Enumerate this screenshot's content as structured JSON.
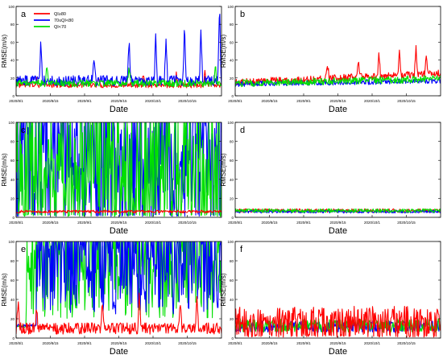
{
  "figure": {
    "xlabel": "Date",
    "ylabel": "RMSE(m/s)"
  },
  "colors": {
    "QI>=80": "#ff0000",
    "70<=QI<80": "#0000ff",
    "QI<70": "#00e000",
    "highlight": "#ff99ff"
  },
  "chart_data": [
    {
      "panel": "a",
      "type": "line",
      "xlabel": "Date",
      "ylabel": "RMSE(m/s)",
      "ylim": [
        0,
        100
      ],
      "yticks": [
        0,
        20,
        40,
        60,
        80,
        100
      ],
      "xticks": [
        "2020/8/1",
        "2020/8/15",
        "2020/9/1",
        "2020/9/15",
        "2020/10/1",
        "2020/10/15"
      ],
      "x_range": [
        "2020/8/1",
        "2020/10/28"
      ],
      "legend": "top-left",
      "series": [
        {
          "name": "QI≥80",
          "color": "#ff0000",
          "baseline": 12,
          "noise": 3,
          "spikes": [
            [
              0.1,
              8
            ],
            [
              0.4,
              10
            ],
            [
              0.62,
              14
            ],
            [
              0.78,
              12
            ],
            [
              0.92,
              16
            ]
          ]
        },
        {
          "name": "70≤QI<80",
          "color": "#0000ff",
          "baseline": 17,
          "noise": 6,
          "spikes": [
            [
              0.12,
              42
            ],
            [
              0.38,
              30
            ],
            [
              0.55,
              45
            ],
            [
              0.68,
              55
            ],
            [
              0.73,
              48
            ],
            [
              0.82,
              60
            ],
            [
              0.9,
              55
            ],
            [
              0.99,
              88
            ]
          ]
        },
        {
          "name": "QI<70",
          "color": "#00e000",
          "baseline": 14,
          "noise": 4,
          "spikes": [
            [
              0.15,
              18
            ],
            [
              0.55,
              16
            ],
            [
              0.97,
              20
            ]
          ]
        }
      ]
    },
    {
      "panel": "b",
      "type": "line",
      "xlabel": "Date",
      "ylabel": "RMSE(m/s)",
      "ylim": [
        0,
        100
      ],
      "yticks": [
        0,
        20,
        40,
        60,
        80,
        100
      ],
      "xticks": [
        "2020/8/1",
        "2020/8/15",
        "2020/9/1",
        "2020/9/15",
        "2020/10/1",
        "2020/10/15"
      ],
      "x_range": [
        "2020/8/1",
        "2020/10/28"
      ],
      "series": [
        {
          "name": "QI≥80",
          "color": "#ff0000",
          "baseline": 15,
          "noise": 4,
          "trend": 10,
          "spikes": [
            [
              0.45,
              15
            ],
            [
              0.6,
              22
            ],
            [
              0.7,
              25
            ],
            [
              0.8,
              28
            ],
            [
              0.88,
              30
            ],
            [
              0.93,
              25
            ]
          ]
        },
        {
          "name": "70≤QI<80",
          "color": "#0000ff",
          "baseline": 13,
          "noise": 3,
          "trend": 4
        },
        {
          "name": "QI<70",
          "color": "#00e000",
          "baseline": 14,
          "noise": 4,
          "trend": 5
        }
      ]
    },
    {
      "panel": "c",
      "type": "line",
      "xlabel": "Date",
      "ylabel": "RMSE(m/s)",
      "ylim": [
        0,
        100
      ],
      "yticks": [
        0,
        20,
        40,
        60,
        80,
        100
      ],
      "xticks": [
        "2020/8/1",
        "2020/8/15",
        "2020/9/1",
        "2020/9/15",
        "2020/10/1",
        "2020/10/15"
      ],
      "x_range": [
        "2020/8/1",
        "2020/10/28"
      ],
      "series": [
        {
          "name": "70≤QI<80",
          "color": "#0000ff",
          "baseline": 45,
          "noise": 60,
          "clip": true
        },
        {
          "name": "QI<70",
          "color": "#00e000",
          "baseline": 35,
          "noise": 55,
          "clip": true
        },
        {
          "name": "QI≥80",
          "color": "#ff0000",
          "baseline": 6,
          "noise": 1.5
        }
      ]
    },
    {
      "panel": "d",
      "type": "line",
      "xlabel": "Date",
      "ylabel": "RMSE(m/s)",
      "ylim": [
        0,
        100
      ],
      "yticks": [
        0,
        20,
        40,
        60,
        80,
        100
      ],
      "xticks": [
        "2020/8/1",
        "2020/8/15",
        "2020/9/1",
        "2020/9/15",
        "2020/10/1",
        "2020/10/15"
      ],
      "x_range": [
        "2020/8/1",
        "2020/10/28"
      ],
      "series": [
        {
          "name": "QI≥80",
          "color": "#ff0000",
          "baseline": 7,
          "noise": 2
        },
        {
          "name": "70≤QI<80",
          "color": "#0000ff",
          "baseline": 6,
          "noise": 1.5
        },
        {
          "name": "QI<70",
          "color": "#00e000",
          "baseline": 7,
          "noise": 2
        }
      ]
    },
    {
      "panel": "e",
      "type": "line",
      "xlabel": "Date",
      "ylabel": "RMSE(m/s)",
      "ylim": [
        0,
        100
      ],
      "yticks": [
        0,
        20,
        40,
        60,
        80,
        100
      ],
      "xticks": [
        "2020/8/1",
        "2020/8/15",
        "2020/9/1",
        "2020/9/15",
        "2020/10/1",
        "2020/10/15"
      ],
      "x_range": [
        "2020/8/1",
        "2020/10/28"
      ],
      "series": [
        {
          "name": "QI<70",
          "color": "#00e000",
          "baseline": 70,
          "noise": 50,
          "clip": true,
          "start": 0.05
        },
        {
          "name": "70≤QI<80",
          "color": "#0000ff",
          "baseline": 75,
          "noise": 50,
          "clip": true,
          "start": 0.1
        },
        {
          "name": "QI≥80",
          "color": "#ff0000",
          "baseline": 10,
          "noise": 6,
          "spikes": [
            [
              0.01,
              32
            ],
            [
              0.1,
              20
            ],
            [
              0.42,
              25
            ],
            [
              0.6,
              40
            ],
            [
              0.8,
              28
            ],
            [
              0.88,
              35
            ]
          ]
        }
      ]
    },
    {
      "panel": "f",
      "type": "line",
      "xlabel": "Date",
      "ylabel": "RMSE(m/s)",
      "ylim": [
        0,
        100
      ],
      "yticks": [
        0,
        20,
        40,
        60,
        80,
        100
      ],
      "xticks": [
        "2020/8/1",
        "2020/8/15",
        "2020/9/1",
        "2020/9/15",
        "2020/10/1",
        "2020/10/15"
      ],
      "x_range": [
        "2020/8/1",
        "2020/10/28"
      ],
      "series": [
        {
          "name": "70≤QI<80",
          "color": "#0000ff",
          "baseline": 12,
          "noise": 6
        },
        {
          "name": "QI<70",
          "color": "#00e000",
          "baseline": 13,
          "noise": 7
        },
        {
          "name": "QI≥80",
          "color": "#ff0000",
          "baseline": 15,
          "noise": 18
        }
      ]
    }
  ]
}
